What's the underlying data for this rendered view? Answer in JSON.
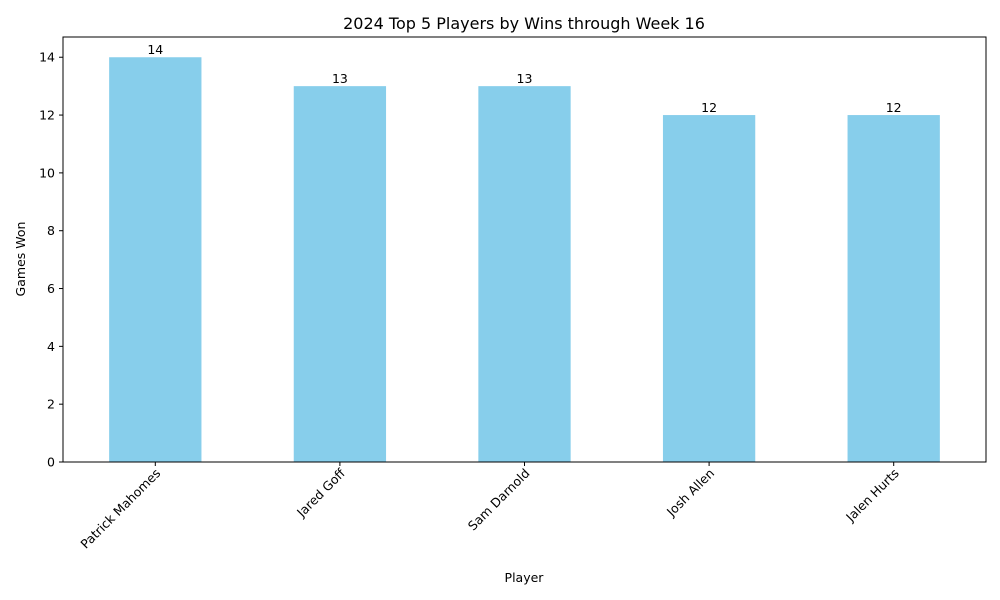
{
  "chart_data": {
    "type": "bar",
    "title": "2024 Top 5 Players by Wins through Week 16",
    "xlabel": "Player",
    "ylabel": "Games Won",
    "categories": [
      "Patrick Mahomes",
      "Jared Goff",
      "Sam Darnold",
      "Josh Allen",
      "Jalen Hurts"
    ],
    "values": [
      14,
      13,
      13,
      12,
      12
    ],
    "ylim": [
      0,
      14.7
    ],
    "yticks": [
      0,
      2,
      4,
      6,
      8,
      10,
      12,
      14
    ],
    "x_tick_rotation_deg": 45,
    "grid": false,
    "legend": "none",
    "bar_color": "#87CEEB",
    "data_labels": true
  }
}
